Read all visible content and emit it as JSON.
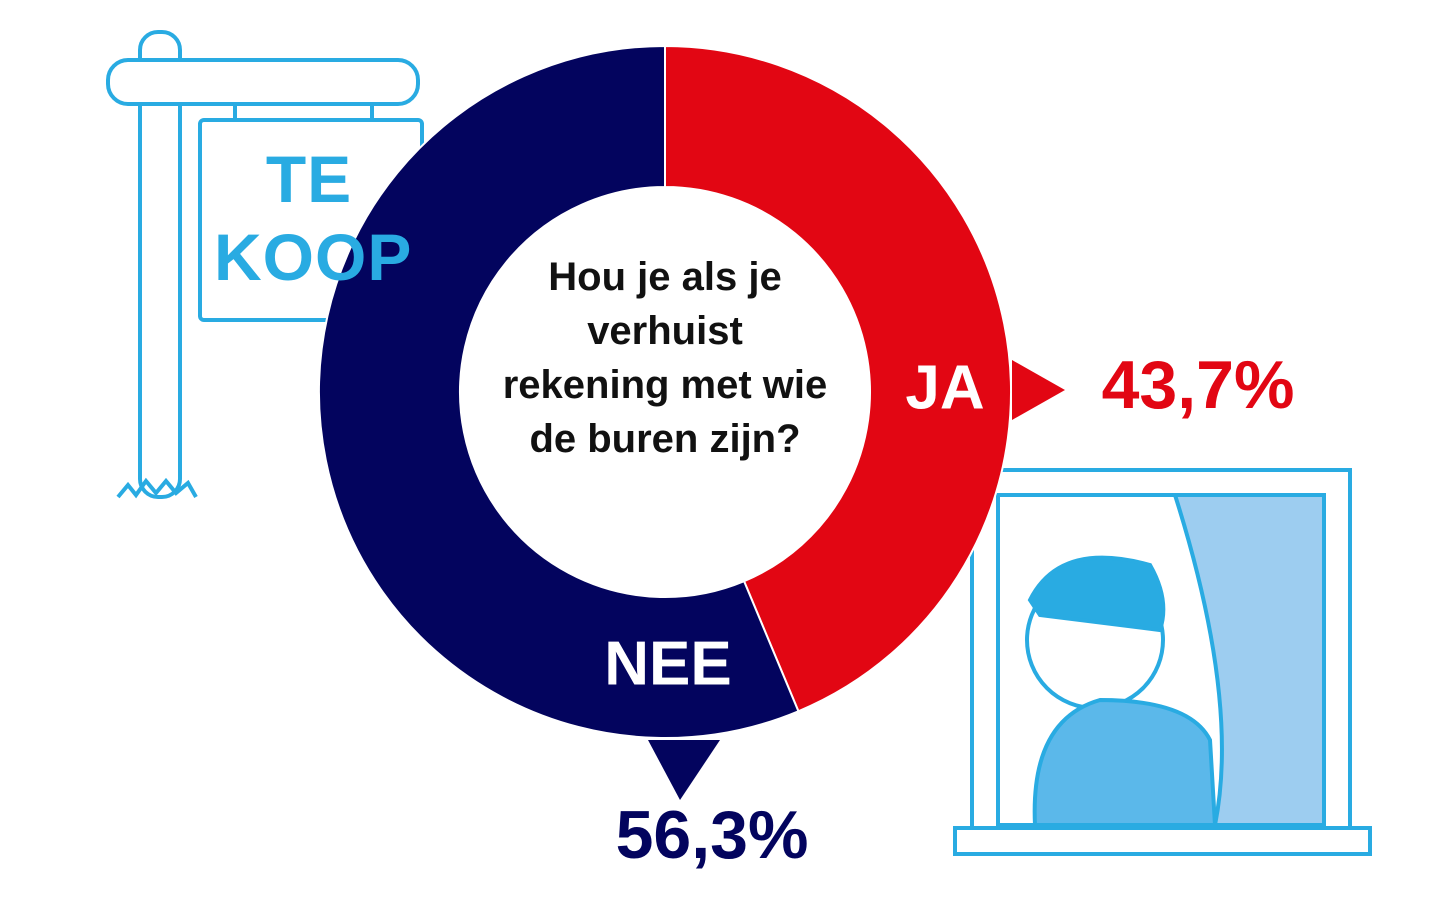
{
  "chart_data": {
    "type": "donut",
    "title": "Hou je als je verhuist rekening met wie de buren zijn?",
    "categories": [
      "JA",
      "NEE"
    ],
    "values": [
      43.7,
      56.3
    ],
    "value_labels": [
      "43,7%",
      "56,3%"
    ],
    "colors": [
      "#e20613",
      "#03045e"
    ]
  },
  "illustration_text": "TE KOOP"
}
